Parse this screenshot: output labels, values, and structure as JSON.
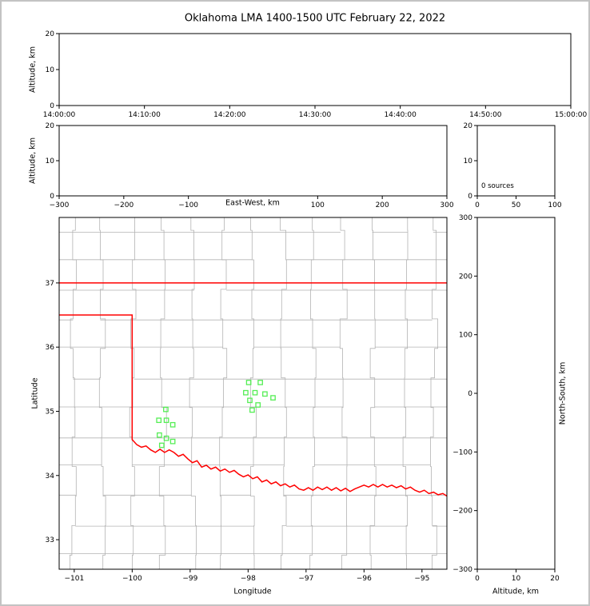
{
  "title": "Oklahoma LMA 1400-1500 UTC February 22, 2022",
  "colors": {
    "background": "#ffffff",
    "frame": "#c3c3c3",
    "axis": "#000000",
    "county_line": "#b3b3b3",
    "state_border": "#ff0000",
    "station_marker": "#55ee55"
  },
  "chart_data": [
    {
      "id": "time_height",
      "type": "scatter",
      "xlabel": "",
      "ylabel": "Altitude, km",
      "x_ticks": [
        "14:00:00",
        "14:10:00",
        "14:20:00",
        "14:30:00",
        "14:40:00",
        "14:50:00",
        "15:00:00"
      ],
      "ylim": [
        0,
        20
      ],
      "y_ticks": [
        0,
        10,
        20
      ],
      "points": []
    },
    {
      "id": "east_west_height",
      "type": "scatter",
      "xlabel": "East-West, km",
      "ylabel": "Altitude, km",
      "xlim": [
        -300,
        300
      ],
      "x_ticks": [
        -300,
        -200,
        -100,
        100,
        200,
        300
      ],
      "ylim": [
        0,
        20
      ],
      "y_ticks": [
        0,
        10,
        20
      ],
      "points": []
    },
    {
      "id": "altitude_source_histogram",
      "type": "line",
      "annotation": "0 sources",
      "xlim": [
        0,
        100
      ],
      "x_ticks": [
        0,
        50,
        100
      ],
      "ylim": [
        0,
        20
      ],
      "y_ticks": [
        0,
        10,
        20
      ],
      "values": []
    },
    {
      "id": "plan_view_map",
      "type": "map",
      "xlabel": "Longitude",
      "ylabel": "Latitude",
      "xlim": [
        -101.26,
        -94.57
      ],
      "ylim": [
        32.54,
        38.02
      ],
      "x_ticks": [
        -101,
        -100,
        -99,
        -98,
        -97,
        -96,
        -95
      ],
      "y_ticks": [
        33,
        34,
        35,
        36,
        37
      ],
      "stations": [
        [
          -99.42,
          35.03
        ],
        [
          -99.54,
          34.86
        ],
        [
          -99.41,
          34.86
        ],
        [
          -99.3,
          34.79
        ],
        [
          -99.53,
          34.63
        ],
        [
          -99.41,
          34.58
        ],
        [
          -99.3,
          34.53
        ],
        [
          -99.49,
          34.47
        ],
        [
          -97.99,
          35.45
        ],
        [
          -97.79,
          35.45
        ],
        [
          -98.04,
          35.29
        ],
        [
          -97.88,
          35.29
        ],
        [
          -97.71,
          35.27
        ],
        [
          -97.57,
          35.21
        ],
        [
          -97.97,
          35.17
        ],
        [
          -97.83,
          35.1
        ],
        [
          -97.93,
          35.02
        ]
      ],
      "borders": {
        "kansas_border": [
          [
            -101.26,
            37.0
          ],
          [
            -94.57,
            37.0
          ]
        ],
        "texas_border": [
          [
            -101.26,
            36.5
          ],
          [
            -100.0,
            36.5
          ],
          [
            -100.0,
            34.56
          ],
          [
            -99.92,
            34.48
          ],
          [
            -99.84,
            34.44
          ],
          [
            -99.76,
            34.46
          ],
          [
            -99.68,
            34.4
          ],
          [
            -99.6,
            34.36
          ],
          [
            -99.52,
            34.41
          ],
          [
            -99.44,
            34.36
          ],
          [
            -99.36,
            34.4
          ],
          [
            -99.28,
            34.36
          ],
          [
            -99.2,
            34.3
          ],
          [
            -99.12,
            34.33
          ],
          [
            -99.04,
            34.26
          ],
          [
            -98.96,
            34.2
          ],
          [
            -98.88,
            34.23
          ],
          [
            -98.8,
            34.13
          ],
          [
            -98.72,
            34.16
          ],
          [
            -98.64,
            34.1
          ],
          [
            -98.56,
            34.13
          ],
          [
            -98.48,
            34.07
          ],
          [
            -98.4,
            34.1
          ],
          [
            -98.32,
            34.05
          ],
          [
            -98.24,
            34.08
          ],
          [
            -98.16,
            34.02
          ],
          [
            -98.08,
            33.98
          ],
          [
            -98.0,
            34.01
          ],
          [
            -97.92,
            33.95
          ],
          [
            -97.84,
            33.98
          ],
          [
            -97.76,
            33.9
          ],
          [
            -97.68,
            33.93
          ],
          [
            -97.6,
            33.87
          ],
          [
            -97.52,
            33.9
          ],
          [
            -97.44,
            33.84
          ],
          [
            -97.36,
            33.87
          ],
          [
            -97.28,
            33.82
          ],
          [
            -97.2,
            33.85
          ],
          [
            -97.12,
            33.79
          ],
          [
            -97.04,
            33.77
          ],
          [
            -96.96,
            33.81
          ],
          [
            -96.88,
            33.77
          ],
          [
            -96.8,
            33.82
          ],
          [
            -96.72,
            33.78
          ],
          [
            -96.64,
            33.82
          ],
          [
            -96.56,
            33.77
          ],
          [
            -96.48,
            33.81
          ],
          [
            -96.4,
            33.76
          ],
          [
            -96.32,
            33.8
          ],
          [
            -96.24,
            33.75
          ],
          [
            -96.16,
            33.79
          ],
          [
            -96.08,
            33.82
          ],
          [
            -96.0,
            33.85
          ],
          [
            -95.92,
            33.82
          ],
          [
            -95.84,
            33.86
          ],
          [
            -95.76,
            33.82
          ],
          [
            -95.68,
            33.86
          ],
          [
            -95.6,
            33.82
          ],
          [
            -95.52,
            33.85
          ],
          [
            -95.44,
            33.81
          ],
          [
            -95.36,
            33.84
          ],
          [
            -95.28,
            33.79
          ],
          [
            -95.2,
            33.82
          ],
          [
            -95.12,
            33.77
          ],
          [
            -95.04,
            33.74
          ],
          [
            -94.96,
            33.77
          ],
          [
            -94.88,
            33.72
          ],
          [
            -94.8,
            33.74
          ],
          [
            -94.72,
            33.7
          ],
          [
            -94.64,
            33.72
          ],
          [
            -94.57,
            33.68
          ]
        ]
      },
      "county_grid": {
        "lon_start": -101.55,
        "lon_step": 0.52,
        "lat_start": 32.3,
        "lat_step": 0.46,
        "jitter": 0.13,
        "seed": 20220222
      }
    },
    {
      "id": "north_south_height",
      "type": "scatter",
      "xlabel": "Altitude, km",
      "ylabel": "North-South, km",
      "xlim": [
        0,
        20
      ],
      "x_ticks": [
        0,
        10,
        20
      ],
      "ylim": [
        -300,
        300
      ],
      "y_ticks": [
        300,
        200,
        100,
        0,
        -100,
        -200,
        -300
      ],
      "points": []
    }
  ]
}
